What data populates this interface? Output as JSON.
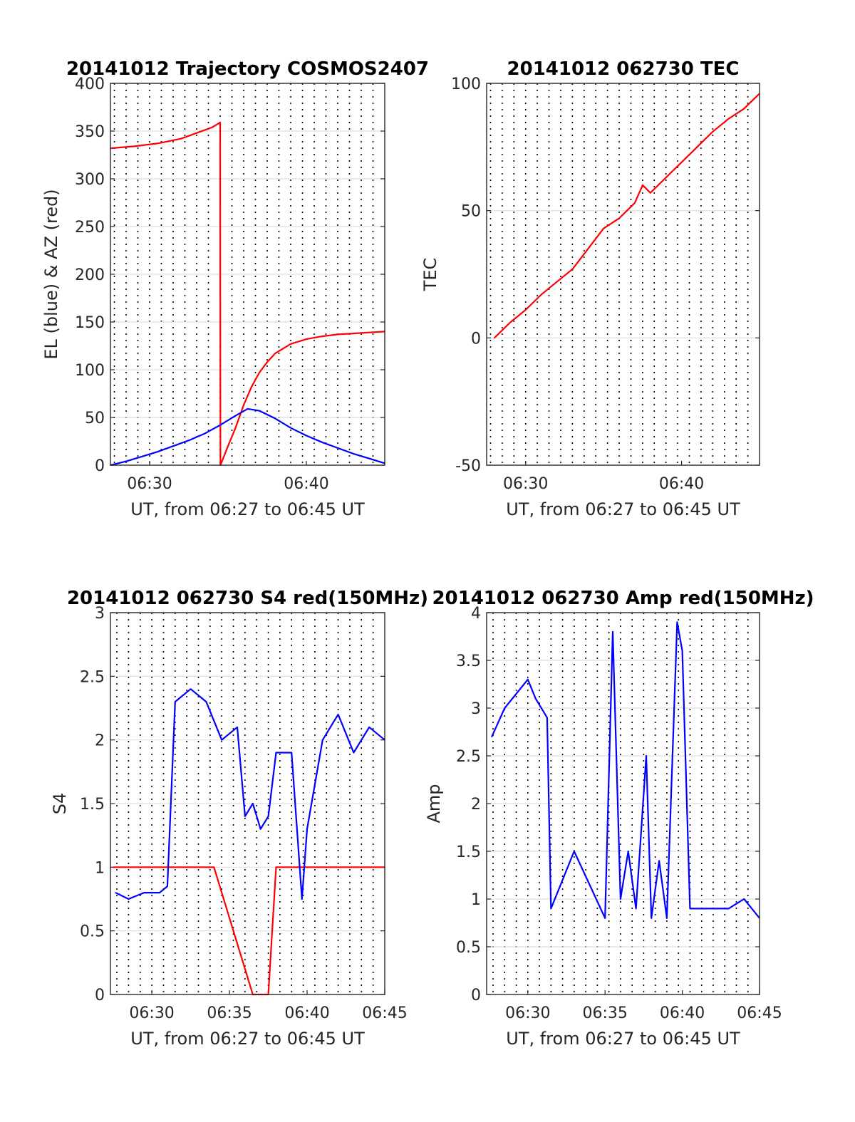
{
  "chart_data": [
    {
      "type": "line",
      "title": "20141012 Trajectory COSMOS2407",
      "xlabel": "UT, from 06:27 to 06:45 UT",
      "ylabel": "EL (blue) & AZ (red)",
      "xlim": [
        "06:27:30",
        "06:45:00"
      ],
      "ylim": [
        0,
        400
      ],
      "x_ticks": [
        "06:30",
        "06:40"
      ],
      "y_ticks": [
        "0",
        "50",
        "100",
        "150",
        "200",
        "250",
        "300",
        "350",
        "400"
      ],
      "grid": "horizontal solid, vertical dotted every 45 s",
      "series": [
        {
          "color": "#ff0000",
          "x": [
            "06:27:30",
            "06:29:00",
            "06:30:30",
            "06:32:00",
            "06:33:00",
            "06:34:00",
            "06:34:30",
            "06:34:31",
            "06:35:00",
            "06:35:30",
            "06:36:00",
            "06:36:30",
            "06:37:00",
            "06:37:30",
            "06:38:00",
            "06:39:00",
            "06:40:00",
            "06:41:00",
            "06:42:00",
            "06:43:00",
            "06:44:00",
            "06:45:00"
          ],
          "values": [
            332,
            334,
            337,
            342,
            348,
            354,
            359,
            0,
            20,
            40,
            63,
            82,
            97,
            108,
            117,
            127,
            132,
            135,
            137,
            138,
            139,
            140
          ]
        },
        {
          "color": "#0000ff",
          "x": [
            "06:27:30",
            "06:28:30",
            "06:29:30",
            "06:30:30",
            "06:31:30",
            "06:32:30",
            "06:33:30",
            "06:34:30",
            "06:35:30",
            "06:36:15",
            "06:37:00",
            "06:38:00",
            "06:39:00",
            "06:40:00",
            "06:41:00",
            "06:42:00",
            "06:43:00",
            "06:44:00",
            "06:45:00"
          ],
          "values": [
            0,
            4,
            9,
            14,
            20,
            26,
            33,
            42,
            52,
            59,
            57,
            49,
            39,
            31,
            24,
            18,
            12,
            7,
            2
          ]
        }
      ]
    },
    {
      "type": "line",
      "title": "20141012 062730 TEC",
      "xlabel": "UT, from 06:27 to 06:45 UT",
      "ylabel": "TEC",
      "xlim": [
        "06:27:30",
        "06:45:00"
      ],
      "ylim": [
        -50,
        100
      ],
      "x_ticks": [
        "06:30",
        "06:40"
      ],
      "y_ticks": [
        "-50",
        "0",
        "50",
        "100"
      ],
      "series": [
        {
          "color": "#ff0000",
          "x": [
            "06:28:00",
            "06:29:00",
            "06:30:00",
            "06:31:00",
            "06:32:00",
            "06:33:00",
            "06:34:00",
            "06:35:00",
            "06:36:00",
            "06:37:00",
            "06:37:30",
            "06:38:00",
            "06:39:00",
            "06:40:00",
            "06:41:00",
            "06:42:00",
            "06:43:00",
            "06:44:00",
            "06:45:00"
          ],
          "values": [
            0,
            6,
            11,
            17,
            22,
            27,
            35,
            43,
            47,
            53,
            60,
            57,
            63,
            69,
            75,
            81,
            86,
            90,
            96
          ]
        }
      ]
    },
    {
      "type": "line",
      "title": "20141012 062730 S4 red(150MHz)",
      "xlabel": "UT, from 06:27 to 06:45 UT",
      "ylabel": "S4",
      "xlim": [
        "06:27:20",
        "06:45:00"
      ],
      "ylim": [
        0,
        3
      ],
      "x_ticks": [
        "06:30",
        "06:35",
        "06:40",
        "06:45"
      ],
      "y_ticks": [
        "0",
        "0.5",
        "1",
        "1.5",
        "2",
        "2.5",
        "3"
      ],
      "series": [
        {
          "color": "#ff0000",
          "x": [
            "06:27:30",
            "06:31:00",
            "06:31:00",
            "06:34:00",
            "06:34:00",
            "06:36:30",
            "06:37:00",
            "06:37:30",
            "06:38:00",
            "06:45:00"
          ],
          "values": [
            1.0,
            1.0,
            1.0,
            1.0,
            1.0,
            0,
            0,
            0,
            1.0,
            1.0
          ]
        },
        {
          "color": "#0000ff",
          "x": [
            "06:27:40",
            "06:28:30",
            "06:29:30",
            "06:30:30",
            "06:31:00",
            "06:31:30",
            "06:32:30",
            "06:33:30",
            "06:34:30",
            "06:35:30",
            "06:36:00",
            "06:36:30",
            "06:37:00",
            "06:37:30",
            "06:38:00",
            "06:39:00",
            "06:39:40",
            "06:40:00",
            "06:41:00",
            "06:42:00",
            "06:43:00",
            "06:44:00",
            "06:45:00"
          ],
          "values": [
            0.8,
            0.75,
            0.8,
            0.8,
            0.85,
            2.3,
            2.4,
            2.3,
            2.0,
            2.1,
            1.4,
            1.5,
            1.3,
            1.4,
            1.9,
            1.9,
            0.75,
            1.3,
            2.0,
            2.2,
            1.9,
            2.1,
            2.0
          ]
        }
      ]
    },
    {
      "type": "line",
      "title": "20141012 062730 Amp red(150MHz)",
      "xlabel": "UT, from 06:27 to 06:45 UT",
      "ylabel": "Amp",
      "xlim": [
        "06:27:20",
        "06:45:00"
      ],
      "ylim": [
        0,
        4
      ],
      "x_ticks": [
        "06:30",
        "06:35",
        "06:40",
        "06:45"
      ],
      "y_ticks": [
        "0",
        "0.5",
        "1",
        "1.5",
        "2",
        "2.5",
        "3",
        "3.5",
        "4"
      ],
      "series": [
        {
          "color": "#0000ff",
          "x": [
            "06:27:40",
            "06:28:30",
            "06:29:30",
            "06:30:00",
            "06:30:30",
            "06:31:15",
            "06:31:30",
            "06:33:00",
            "06:35:00",
            "06:35:30",
            "06:36:00",
            "06:36:30",
            "06:37:00",
            "06:37:40",
            "06:38:00",
            "06:38:30",
            "06:39:00",
            "06:39:40",
            "06:40:00",
            "06:40:30",
            "06:41:00",
            "06:42:00",
            "06:43:00",
            "06:44:00",
            "06:45:00"
          ],
          "values": [
            2.7,
            3.0,
            3.2,
            3.3,
            3.1,
            2.9,
            0.9,
            1.5,
            0.8,
            3.8,
            1.0,
            1.5,
            0.9,
            2.5,
            0.8,
            1.4,
            0.8,
            3.9,
            3.6,
            0.9,
            0.9,
            0.9,
            0.9,
            1.0,
            0.8
          ]
        }
      ]
    }
  ]
}
